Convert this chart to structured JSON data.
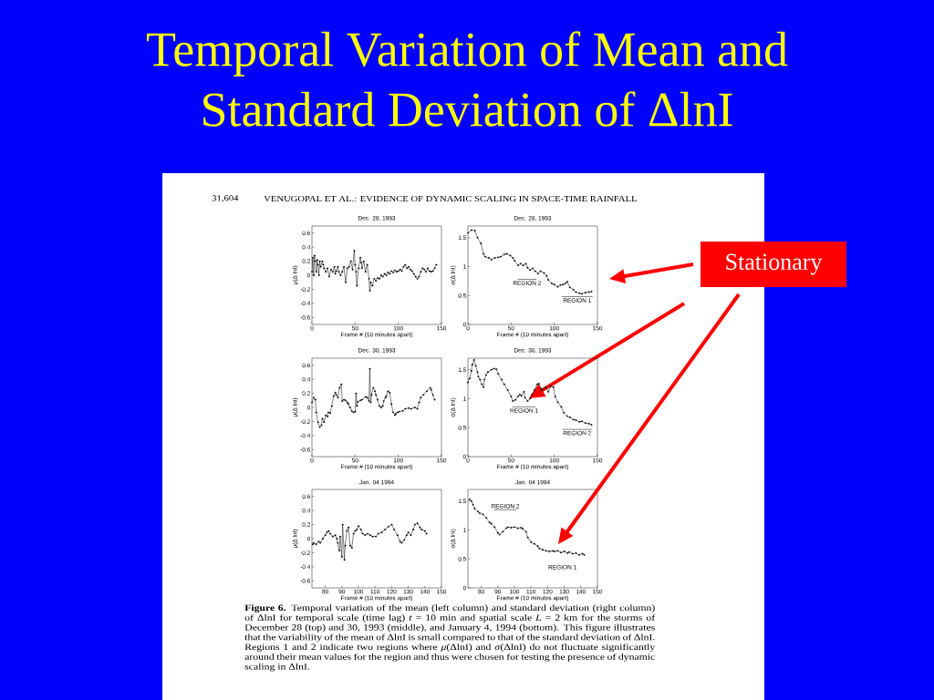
{
  "chart_data": [
    {
      "type": "other",
      "title": "Temporal Variation of Mean and Standard Deviation of ΔlnI",
      "annotations": [
        "31,604",
        "VENUGOPAL ET AL.: EVIDENCE OF DYNAMIC SCALING IN SPACE-TIME RAINFALL",
        "**Figure 6.** Temporal variation of the mean (left column) and standard deviation (right column) of ΔlnI for temporal scale (time lag) *t* = 10 min and spatial scale *L* = 2 km for the storms of December 28 (top) and 30, 1993 (middle), and January 4, 1994 (bottom). This figure illustrates that the variability of the mean of ΔlnI is small compared to that of the standard deviation of ΔlnI. Regions 1 and 2 indicate two regions where *μ*(ΔlnI) and *σ*(ΔlnI) do not fluctuate significantly around their mean values for the region and thus were chosen for testing the presence of dynamic scaling in ΔlnI.",
        "Stationary"
      ]
    },
    {
      "type": "line",
      "title": "Dec. 28, 1993",
      "xlabel": "Frame # (10 minutes apart)",
      "ylabel": "μ(Δ lnI)",
      "marker": "circle",
      "xlim": [
        0,
        150
      ],
      "xticks": [
        0,
        50,
        100,
        150
      ],
      "ylim": [
        -0.7,
        0.7
      ],
      "yticks": [
        -0.6,
        -0.4,
        -0.2,
        0,
        0.2,
        0.4,
        0.6
      ],
      "x": [
        0,
        1,
        2,
        3,
        4,
        5,
        6,
        7,
        8,
        9,
        10,
        12,
        13,
        14,
        16,
        18,
        20,
        22,
        24,
        26,
        27,
        28,
        30,
        31,
        33,
        35,
        37,
        39,
        41,
        43,
        45,
        47,
        49,
        50,
        51,
        52,
        54,
        56,
        57,
        58,
        60,
        62,
        64,
        66,
        67,
        68,
        70,
        72,
        74,
        76,
        78,
        80,
        82,
        84,
        86,
        88,
        90,
        92,
        94,
        96,
        98,
        100,
        102,
        104,
        106,
        108,
        110,
        112,
        114,
        116,
        118,
        120,
        122,
        124,
        126,
        128,
        130,
        132,
        134,
        136,
        138,
        140,
        142,
        144
      ],
      "series": [
        {
          "color": "#000000",
          "values": [
            0.05,
            0.25,
            0.0,
            0.28,
            0.2,
            0.05,
            0.22,
            0.15,
            0.0,
            0.2,
            0.12,
            0.2,
            0.15,
            0.1,
            0.05,
            0.1,
            -0.02,
            0.08,
            0.05,
            0.12,
            0.02,
            0.06,
            0.12,
            0.05,
            0.0,
            0.05,
            0.12,
            -0.1,
            0.1,
            0.12,
            0.2,
            0.08,
            0.35,
            0.15,
            0.05,
            -0.15,
            0.1,
            0.25,
            0.18,
            0.1,
            0.2,
            0.05,
            0.15,
            -0.05,
            -0.22,
            -0.1,
            -0.15,
            -0.05,
            -0.08,
            -0.04,
            -0.05,
            0.0,
            -0.02,
            0.02,
            0.0,
            0.04,
            0.02,
            0.06,
            0.04,
            0.07,
            0.05,
            0.06,
            0.08,
            0.06,
            0.12,
            0.15,
            0.1,
            0.12,
            0.08,
            0.06,
            0.02,
            -0.02,
            -0.05,
            -0.02,
            0.05,
            0.1,
            0.08,
            0.05,
            0.1,
            0.06,
            0.05,
            0.06,
            0.1,
            0.15
          ]
        }
      ]
    },
    {
      "type": "line",
      "title": "Dec. 28, 1993",
      "xlabel": "Frame # (10 minutes apart)",
      "ylabel": "σ(Δ lnI)",
      "marker": "circle",
      "xlim": [
        0,
        150
      ],
      "xticks": [
        0,
        50,
        100,
        150
      ],
      "ylim": [
        0,
        1.7
      ],
      "yticks": [
        0,
        0.5,
        1,
        1.5
      ],
      "x": [
        0,
        4,
        8,
        11,
        15,
        18,
        20,
        24,
        27,
        31,
        35,
        38,
        42,
        45,
        49,
        52,
        54,
        58,
        61,
        64,
        67,
        69,
        72,
        75,
        78,
        81,
        84,
        88,
        91,
        93,
        97,
        100,
        104,
        107,
        110,
        113,
        115,
        118,
        122,
        125,
        129,
        132,
        136,
        140,
        143
      ],
      "series": [
        {
          "color": "#000000",
          "values": [
            1.58,
            1.63,
            1.62,
            1.5,
            1.4,
            1.22,
            1.17,
            1.15,
            1.12,
            1.15,
            1.16,
            1.17,
            1.21,
            1.22,
            1.19,
            1.15,
            1.1,
            1.02,
            1.05,
            1.02,
            1.05,
            0.98,
            0.94,
            0.97,
            0.92,
            0.88,
            0.92,
            0.89,
            0.84,
            0.77,
            0.71,
            0.69,
            0.65,
            0.68,
            0.69,
            0.71,
            0.74,
            0.64,
            0.6,
            0.56,
            0.54,
            0.53,
            0.55,
            0.56,
            0.57
          ]
        },
        {
          "name": "REGION 2",
          "color": "#000000",
          "marker": "none",
          "x": [
            58,
            79
          ],
          "values": [
            0.78,
            0.78
          ]
        },
        {
          "name": "REGION 1",
          "color": "#000000",
          "marker": "none",
          "x": [
            109,
            144
          ],
          "values": [
            0.48,
            0.48
          ]
        }
      ]
    },
    {
      "type": "line",
      "title": "Dec. 30, 1993",
      "xlabel": "Frame # (10 minutes apart)",
      "ylabel": "μ(Δ lnI)",
      "marker": "circle",
      "xlim": [
        0,
        150
      ],
      "xticks": [
        0,
        50,
        100,
        150
      ],
      "ylim": [
        -0.7,
        0.7
      ],
      "yticks": [
        -0.6,
        -0.4,
        -0.2,
        0,
        0.2,
        0.4,
        0.6
      ],
      "x": [
        0,
        2,
        4,
        5,
        7,
        9,
        11,
        12,
        14,
        16,
        18,
        19,
        21,
        23,
        25,
        27,
        28,
        30,
        32,
        34,
        35,
        37,
        39,
        41,
        42,
        44,
        46,
        48,
        50,
        51,
        52,
        53,
        56,
        58,
        62,
        64,
        66,
        67,
        68,
        69,
        71,
        73,
        74,
        76,
        78,
        80,
        82,
        83,
        85,
        86,
        88,
        90,
        92,
        94,
        96,
        97,
        99,
        101,
        105,
        108,
        112,
        115,
        119,
        122,
        124,
        126,
        129,
        133,
        137,
        138,
        140,
        142
      ],
      "series": [
        {
          "color": "#000000",
          "values": [
            0.07,
            0.14,
            0.11,
            -0.07,
            -0.21,
            -0.28,
            -0.25,
            -0.16,
            -0.21,
            -0.11,
            -0.13,
            -0.07,
            -0.08,
            0.02,
            0.16,
            0.21,
            0.18,
            0.14,
            0.28,
            0.33,
            0.09,
            0.11,
            0.1,
            0.07,
            0.05,
            0.0,
            -0.05,
            -0.07,
            -0.06,
            0.2,
            0.02,
            0.08,
            0.1,
            0.11,
            0.15,
            0.14,
            0.09,
            0.55,
            0.07,
            0.18,
            0.28,
            0.23,
            0.18,
            0.11,
            0.02,
            0.0,
            0.02,
            0.09,
            0.14,
            0.16,
            0.23,
            0.21,
            0.05,
            -0.07,
            -0.11,
            -0.09,
            -0.07,
            -0.06,
            -0.05,
            -0.02,
            -0.01,
            -0.02,
            0.0,
            -0.02,
            0.07,
            0.14,
            0.18,
            0.23,
            0.28,
            0.25,
            0.18,
            0.11
          ]
        }
      ]
    },
    {
      "type": "line",
      "title": "Dec. 30, 1993",
      "xlabel": "Frame # (10 minutes apart)",
      "ylabel": "σ(Δ lnI)",
      "marker": "circle",
      "xlim": [
        0,
        150
      ],
      "xticks": [
        0,
        50,
        100,
        150
      ],
      "ylim": [
        0,
        1.7
      ],
      "yticks": [
        0,
        0.5,
        1,
        1.5
      ],
      "x": [
        0,
        2,
        4,
        5,
        7,
        9,
        11,
        12,
        14,
        16,
        18,
        19,
        21,
        23,
        27,
        30,
        33,
        35,
        39,
        42,
        46,
        50,
        52,
        55,
        58,
        60,
        62,
        65,
        66,
        69,
        72,
        74,
        77,
        80,
        82,
        85,
        86,
        90,
        93,
        96,
        99,
        101,
        104,
        108,
        111,
        115,
        118,
        122,
        125,
        129,
        132,
        136,
        140,
        143
      ],
      "series": [
        {
          "color": "#000000",
          "values": [
            1.28,
            1.35,
            1.48,
            1.59,
            1.67,
            1.57,
            1.46,
            1.38,
            1.33,
            1.25,
            1.2,
            1.33,
            1.41,
            1.46,
            1.5,
            1.52,
            1.51,
            1.43,
            1.33,
            1.25,
            1.15,
            1.04,
            0.96,
            0.98,
            1.04,
            1.07,
            1.05,
            1.12,
            1.02,
            0.96,
            1.0,
            1.07,
            1.15,
            1.25,
            1.26,
            1.17,
            1.15,
            1.2,
            1.12,
            1.22,
            1.2,
            1.04,
            0.94,
            0.86,
            0.76,
            0.7,
            0.68,
            0.64,
            0.63,
            0.6,
            0.61,
            0.58,
            0.57,
            0.55
          ]
        },
        {
          "name": "REGION 1",
          "color": "#000000",
          "marker": "none",
          "x": [
            52,
            78
          ],
          "values": [
            0.86,
            0.86
          ]
        },
        {
          "name": "REGION 2",
          "color": "#000000",
          "marker": "none",
          "x": [
            110,
            143
          ],
          "values": [
            0.47,
            0.47
          ]
        }
      ]
    },
    {
      "type": "line",
      "title": "Jan. 04 1994",
      "xlabel": "Frame # (10 minutes apart)",
      "ylabel": "μ(Δ lnI)",
      "marker": "circle",
      "xlim": [
        72,
        150
      ],
      "xticks": [
        80,
        90,
        100,
        110,
        120,
        130,
        140,
        150
      ],
      "ylim": [
        -0.7,
        0.7
      ],
      "yticks": [
        -0.6,
        -0.4,
        -0.2,
        0,
        0.2,
        0.4,
        0.6
      ],
      "x": [
        72.5,
        73,
        74.5,
        76,
        77,
        78.5,
        80,
        81,
        82,
        83,
        84.5,
        86,
        87,
        87.5,
        88.5,
        89,
        90,
        90.5,
        91.5,
        92,
        93,
        94,
        95,
        96,
        97,
        98,
        99,
        100,
        101.5,
        102.5,
        104,
        105.5,
        107,
        108.5,
        110.5,
        112,
        114,
        116,
        118,
        120,
        121.5,
        123.5,
        125,
        126,
        127.5,
        129,
        130,
        131.5,
        133,
        134,
        135.5,
        137,
        138,
        140,
        141
      ],
      "series": [
        {
          "color": "#000000",
          "values": [
            -0.08,
            -0.06,
            -0.08,
            -0.04,
            -0.06,
            0.0,
            0.05,
            0.09,
            0.11,
            0.07,
            0.03,
            0.05,
            0.0,
            -0.06,
            -0.17,
            0.03,
            -0.26,
            0.2,
            -0.3,
            -0.1,
            0.11,
            0.16,
            -0.1,
            -0.13,
            0.07,
            0.11,
            0.13,
            0.18,
            0.13,
            0.07,
            0.05,
            0.07,
            0.05,
            0.03,
            0.03,
            0.07,
            0.09,
            0.13,
            0.17,
            0.2,
            0.13,
            0.05,
            -0.04,
            -0.06,
            -0.02,
            0.05,
            0.09,
            0.05,
            0.13,
            0.2,
            0.22,
            0.16,
            0.13,
            0.11,
            0.07
          ]
        }
      ]
    },
    {
      "type": "line",
      "title": "Jan. 04 1994",
      "xlabel": "Frame # (10 minutes apart)",
      "ylabel": "σ(Δ lnI)",
      "marker": "circle",
      "xlim": [
        72,
        150
      ],
      "xticks": [
        80,
        90,
        100,
        110,
        120,
        130,
        140,
        150
      ],
      "ylim": [
        0,
        1.7
      ],
      "yticks": [
        0,
        0.5,
        1,
        1.5
      ],
      "x": [
        73,
        74,
        75,
        76,
        78,
        79,
        81,
        83,
        85,
        86,
        88,
        90,
        91,
        93,
        95,
        96,
        98,
        100,
        102,
        104,
        105,
        107,
        108,
        110,
        112,
        114,
        115,
        117,
        119,
        121,
        123,
        124,
        126,
        128,
        130,
        132,
        133,
        135,
        137,
        139,
        141,
        142
      ],
      "series": [
        {
          "color": "#000000",
          "values": [
            1.53,
            1.5,
            1.44,
            1.37,
            1.32,
            1.29,
            1.27,
            1.21,
            1.13,
            1.11,
            1.05,
            0.95,
            0.92,
            0.97,
            1.03,
            1.05,
            1.04,
            1.05,
            1.03,
            1.04,
            1.02,
            0.97,
            0.87,
            0.79,
            0.76,
            0.72,
            0.68,
            0.66,
            0.64,
            0.63,
            0.64,
            0.63,
            0.64,
            0.61,
            0.63,
            0.6,
            0.62,
            0.59,
            0.6,
            0.57,
            0.59,
            0.57
          ]
        },
        {
          "name": "REGION 2",
          "color": "#000000",
          "marker": "none",
          "x": [
            88,
            101
          ],
          "values": [
            1.35,
            1.35
          ]
        }
      ],
      "annotations": [
        "REGION 1"
      ]
    }
  ]
}
